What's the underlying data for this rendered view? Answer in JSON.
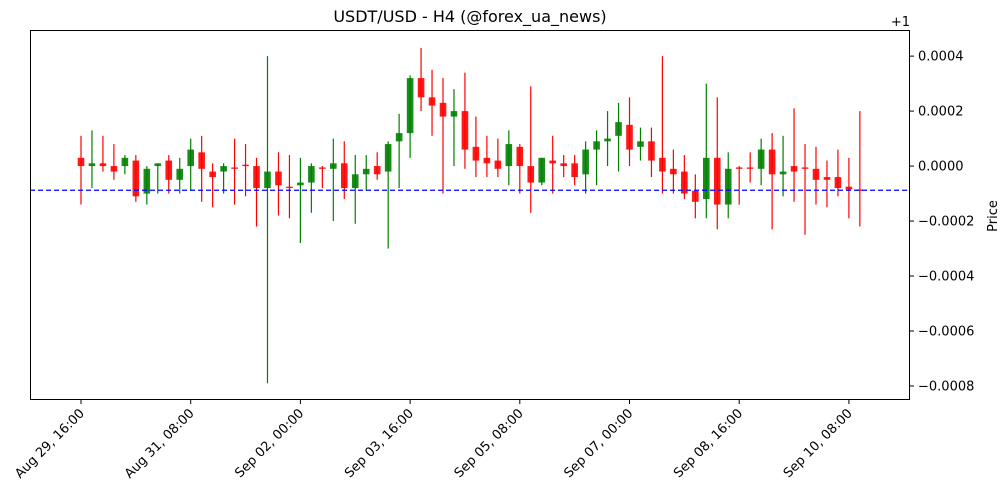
{
  "chart_data": {
    "type": "candlestick",
    "title": "USDT/USD - H4 (@forex_ua_news)",
    "xlabel": "",
    "ylabel": "Price",
    "y_offset_label": "+1",
    "ylim": [
      0.999149,
      1.000495
    ],
    "y_ticks": [
      -0.0008,
      -0.0006,
      -0.0004,
      -0.0002,
      0.0,
      0.0002,
      0.0004
    ],
    "y_tick_labels": [
      "−0.0008",
      "−0.0006",
      "−0.0004",
      "−0.0002",
      "0.0000",
      "0.0002",
      "0.0004"
    ],
    "x_tick_labels": [
      "Aug 29, 16:00",
      "Aug 31, 08:00",
      "Sep 02, 00:00",
      "Sep 03, 16:00",
      "Sep 05, 08:00",
      "Sep 07, 00:00",
      "Sep 08, 16:00",
      "Sep 10, 08:00"
    ],
    "x_tick_candles": [
      "Aug 29 16:00",
      "Aug 31 08:00",
      "Sep 02 00:00",
      "Sep 03 16:00",
      "Sep 05 08:00",
      "Sep 07 00:00",
      "Sep 08 16:00",
      "Sep 10 08:00"
    ],
    "grid": false,
    "colors": {
      "up": "#008000",
      "down": "#ff0000",
      "hline": "#0000ff"
    },
    "hline": {
      "value": 0.999912,
      "style": "dashed"
    },
    "candles": {
      "time": [
        "Aug 29 16:00",
        "Aug 29 20:00",
        "Aug 30 00:00",
        "Aug 30 04:00",
        "Aug 30 08:00",
        "Aug 30 12:00",
        "Aug 30 16:00",
        "Aug 30 20:00",
        "Aug 31 00:00",
        "Aug 31 04:00",
        "Aug 31 08:00",
        "Aug 31 12:00",
        "Aug 31 16:00",
        "Aug 31 20:00",
        "Sep 01 00:00",
        "Sep 01 04:00",
        "Sep 01 08:00",
        "Sep 01 12:00",
        "Sep 01 16:00",
        "Sep 01 20:00",
        "Sep 02 00:00",
        "Sep 02 04:00",
        "Sep 02 08:00",
        "Sep 02 12:00",
        "Sep 02 16:00",
        "Sep 02 20:00",
        "Sep 03 00:00",
        "Sep 03 04:00",
        "Sep 03 08:00",
        "Sep 03 12:00",
        "Sep 03 16:00",
        "Sep 03 20:00",
        "Sep 04 00:00",
        "Sep 04 04:00",
        "Sep 04 08:00",
        "Sep 04 12:00",
        "Sep 04 16:00",
        "Sep 04 20:00",
        "Sep 05 00:00",
        "Sep 05 04:00",
        "Sep 05 08:00",
        "Sep 05 12:00",
        "Sep 05 16:00",
        "Sep 05 20:00",
        "Sep 06 00:00",
        "Sep 06 04:00",
        "Sep 06 08:00",
        "Sep 06 12:00",
        "Sep 06 16:00",
        "Sep 06 20:00",
        "Sep 07 00:00",
        "Sep 07 04:00",
        "Sep 07 08:00",
        "Sep 07 12:00",
        "Sep 07 16:00",
        "Sep 07 20:00",
        "Sep 08 00:00",
        "Sep 08 04:00",
        "Sep 08 08:00",
        "Sep 08 12:00",
        "Sep 08 16:00",
        "Sep 08 20:00",
        "Sep 09 00:00",
        "Sep 09 04:00",
        "Sep 09 08:00",
        "Sep 09 12:00",
        "Sep 09 16:00",
        "Sep 09 20:00",
        "Sep 10 00:00",
        "Sep 10 04:00",
        "Sep 10 08:00",
        "Sep 10 12:00"
      ],
      "open": [
        1.00003,
        1.0,
        1.00001,
        1.0,
        1.0,
        1.00002,
        0.9999,
        1.0,
        1.00002,
        0.99995,
        1.0,
        1.00005,
        0.99998,
        0.99998,
        0.999995,
        1.000005,
        1.0,
        0.99992,
        0.99998,
        0.999925,
        0.99993,
        0.99994,
        0.999995,
        0.99999,
        1.00001,
        0.99992,
        0.99997,
        1.0,
        0.99998,
        1.00009,
        1.00012,
        1.00032,
        1.00025,
        1.00023,
        1.00018,
        1.0002,
        1.00007,
        1.00003,
        1.00002,
        1.0,
        1.00007,
        1.0,
        0.99994,
        1.00002,
        1.00001,
        1.00001,
        0.99997,
        1.00006,
        1.00009,
        1.00011,
        1.00015,
        1.00007,
        1.00009,
        1.00003,
        0.99999,
        0.99998,
        0.99991,
        0.99988,
        1.00003,
        0.99986,
        0.999995,
        0.999995,
        0.99999,
        1.00006,
        0.99997,
        1.0,
        0.999995,
        0.99999,
        0.99996,
        0.99996,
        0.999925,
        0.999915
      ],
      "high": [
        1.00011,
        1.00013,
        1.00011,
        1.00008,
        1.00004,
        1.00004,
        1.0,
        1.00001,
        1.00004,
        1.00003,
        1.0001,
        1.00011,
        1.00001,
        1.00001,
        1.0001,
        1.00008,
        1.00003,
        1.0004,
        1.00005,
        1.00004,
        1.00003,
        1.00001,
        1.0,
        1.0001,
        1.00009,
        1.00004,
        1.00004,
        1.00005,
        1.00009,
        1.00019,
        1.00033,
        1.00043,
        1.00035,
        1.00032,
        1.00028,
        1.00034,
        1.00018,
        1.00011,
        1.0001,
        1.00013,
        1.00008,
        1.00029,
        1.00003,
        1.00011,
        1.00004,
        1.00004,
        1.00009,
        1.00013,
        1.0002,
        1.00023,
        1.00025,
        1.00014,
        1.00014,
        1.0004,
        1.00006,
        1.00004,
        0.99997,
        1.0003,
        1.00025,
        1.00005,
        1.0,
        1.00005,
        1.0001,
        1.00012,
        1.00011,
        1.00021,
        1.00008,
        1.00007,
        1.00002,
        1.00006,
        1.00003,
        1.0002
      ],
      "low": [
        0.99986,
        0.99992,
        0.99998,
        0.99995,
        0.99997,
        0.99987,
        0.99986,
        0.9999,
        0.9999,
        0.9999,
        0.99991,
        0.99987,
        0.99985,
        0.9999,
        0.99986,
        0.99989,
        0.99978,
        0.99921,
        0.99982,
        0.99981,
        0.99972,
        0.99983,
        0.99992,
        0.9998,
        0.99988,
        0.99979,
        0.99991,
        0.99995,
        0.9997,
        0.99992,
        1.00003,
        1.0002,
        1.00011,
        0.9999,
        1.0,
        0.99999,
        0.99996,
        0.99996,
        0.99996,
        0.99993,
        0.9999,
        0.99983,
        0.99993,
        0.9999,
        0.99996,
        0.99993,
        0.9999,
        0.99993,
        1.0,
        0.99998,
        1.0,
        1.00002,
        0.99996,
        0.9999,
        0.9999,
        0.99988,
        0.99981,
        0.99981,
        0.99977,
        0.99981,
        0.99986,
        0.99994,
        0.99993,
        0.99977,
        0.99989,
        0.99987,
        0.99975,
        0.99986,
        0.99985,
        0.99989,
        0.99981,
        0.99978
      ],
      "close": [
        1.0,
        1.00001,
        1.0,
        0.99998,
        1.00003,
        0.99989,
        0.99999,
        1.00001,
        0.99995,
        0.99999,
        1.00006,
        0.99999,
        0.99996,
        1.0,
        0.99999,
        1.0,
        0.99992,
        0.99998,
        0.99993,
        0.99992,
        0.99994,
        1.0,
        0.99999,
        1.00001,
        0.99992,
        0.99997,
        0.99999,
        0.99997,
        1.00008,
        1.00012,
        1.00032,
        1.00025,
        1.00022,
        1.00018,
        1.0002,
        1.00006,
        1.00002,
        1.00001,
        0.99999,
        1.00008,
        1.0,
        0.99994,
        1.00003,
        1.00001,
        1.0,
        0.99996,
        1.00006,
        1.00009,
        1.0001,
        1.00016,
        1.00006,
        1.00009,
        1.00002,
        0.99998,
        0.99997,
        0.9999,
        0.99987,
        1.00003,
        0.99986,
        0.99999,
        0.99999,
        0.99999,
        1.00006,
        0.99997,
        0.99998,
        0.99998,
        0.99999,
        0.99995,
        0.99995,
        0.99992,
        0.999915,
        0.99991
      ]
    }
  }
}
